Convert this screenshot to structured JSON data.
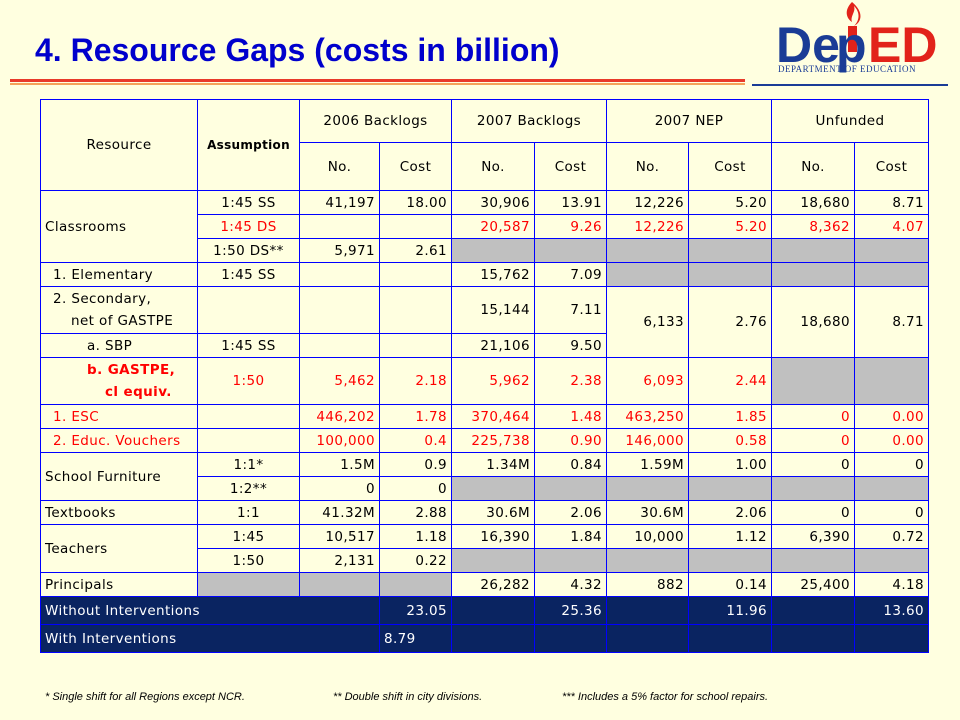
{
  "title": "4.  Resource Gaps (costs in billion)",
  "logo": {
    "brand": "DepED",
    "subtitle": "DEPARTMENT OF EDUCATION"
  },
  "headers": {
    "resource": "Resource",
    "assumption": "Assumption",
    "groups": [
      "2006  Backlogs",
      "2007 Backlogs",
      "2007 NEP",
      "Unfunded"
    ],
    "no": "No.",
    "cost": "Cost"
  },
  "rows": {
    "classrooms": {
      "label": "Classrooms",
      "ss": [
        "1:45 SS",
        "41,197",
        "18.00",
        "30,906",
        "13.91",
        "12,226",
        "5.20",
        "18,680",
        "8.71"
      ],
      "ds": [
        "1:45 DS",
        "20,587",
        "9.26",
        "12,226",
        "5.20",
        "8,362",
        "4.07"
      ],
      "ds50": [
        "1:50 DS**",
        "5,971",
        "2.61"
      ]
    },
    "elementary": {
      "label": "1. Elementary",
      "assumption": "1:45 SS",
      "no": "15,762",
      "cost": "7.09"
    },
    "secondary": {
      "label1": "2. Secondary,",
      "label2": "net of GASTPE",
      "no": "15,144",
      "cost": "7.11"
    },
    "merged": [
      "6,133",
      "2.76",
      "18,680",
      "8.71"
    ],
    "sbp": {
      "label": "a. SBP",
      "assumption": "1:45 SS",
      "no": "21,106",
      "cost": "9.50"
    },
    "gastpe": {
      "label1": "b. GASTPE,",
      "label2": "cl equiv.",
      "assumption": "1:50",
      "values": [
        "5,462",
        "2.18",
        "5,962",
        "2.38",
        "6,093",
        "2.44"
      ]
    },
    "esc": {
      "label": "1. ESC",
      "values": [
        "446,202",
        "1.78",
        "370,464",
        "1.48",
        "463,250",
        "1.85",
        "0",
        "0.00"
      ]
    },
    "vouchers": {
      "label": "2. Educ. Vouchers",
      "values": [
        "100,000",
        "0.4",
        "225,738",
        "0.90",
        "146,000",
        "0.58",
        "0",
        "0.00"
      ]
    },
    "furniture": {
      "label": "School Furniture",
      "r1": [
        "1:1*",
        "1.5M",
        "0.9",
        "1.34M",
        "0.84",
        "1.59M",
        "1.00",
        "0",
        "0"
      ],
      "r2": [
        "1:2**",
        "0",
        "0"
      ]
    },
    "textbooks": {
      "label": "Textbooks",
      "values": [
        "1:1",
        "41.32M",
        "2.88",
        "30.6M",
        "2.06",
        "30.6M",
        "2.06",
        "0",
        "0"
      ]
    },
    "teachers": {
      "label": "Teachers",
      "r1": [
        "1:45",
        "10,517",
        "1.18",
        "16,390",
        "1.84",
        "10,000",
        "1.12",
        "6,390",
        "0.72"
      ],
      "r2": [
        "1:50",
        "2,131",
        "0.22"
      ]
    },
    "principals": {
      "label": "Principals",
      "values": [
        "26,282",
        "4.32",
        "882",
        "0.14",
        "25,400",
        "4.18"
      ]
    },
    "without": {
      "label": "Without Interventions",
      "values": [
        "23.05",
        "25.36",
        "11.96",
        "13.60"
      ]
    },
    "with": {
      "label": "With Interventions",
      "value": "8.79"
    }
  },
  "footnotes": [
    "* Single shift for all Regions except NCR.",
    "** Double shift in city divisions.",
    "*** Includes a 5% factor for school repairs."
  ],
  "colors": {
    "title": "#0000cc",
    "grid": "#0000ff",
    "navy": "#0a2461",
    "red_text": "#ff0000",
    "gray": "#c0c0c0",
    "background": "#ffffe0"
  }
}
